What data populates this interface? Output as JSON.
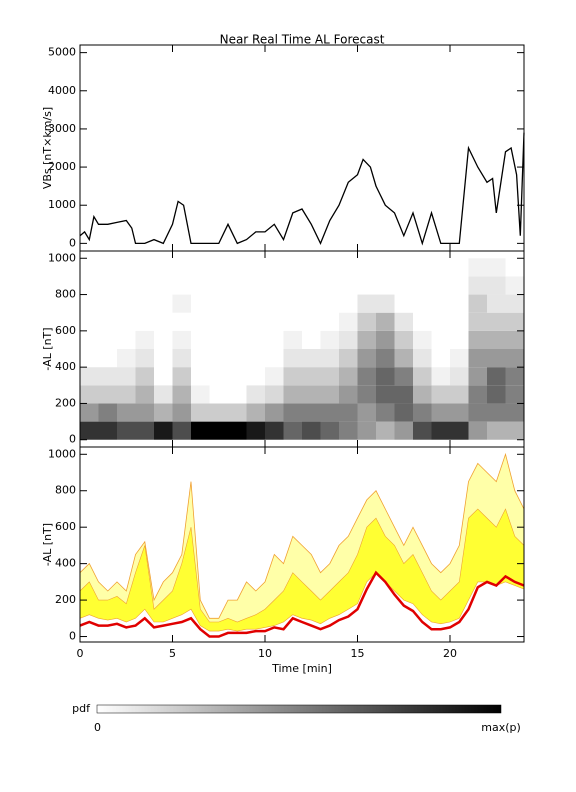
{
  "chart_data": [
    {
      "type": "line",
      "title": "Near Real Time AL Forecast",
      "ylabel": "VBs [nT×km/s]",
      "color": "#000000",
      "xlim": [
        0,
        24
      ],
      "xticks": [
        0,
        5,
        10,
        15,
        20
      ],
      "ylim": [
        -200,
        5200
      ],
      "yticks": [
        0,
        1000,
        2000,
        3000,
        4000,
        5000
      ],
      "x": [
        0,
        0.25,
        0.5,
        0.75,
        1,
        1.5,
        2,
        2.5,
        2.8,
        3,
        3.5,
        4,
        4.5,
        5,
        5.3,
        5.6,
        6,
        7,
        7.5,
        8,
        8.5,
        9,
        9.5,
        10,
        10.5,
        11,
        11.5,
        12,
        12.5,
        13,
        13.5,
        14,
        14.5,
        15,
        15.3,
        15.7,
        16,
        16.5,
        17,
        17.5,
        18,
        18.5,
        19,
        19.5,
        20,
        20.5,
        21,
        21.5,
        22,
        22.3,
        22.5,
        23,
        23.3,
        23.6,
        23.8,
        24
      ],
      "values": [
        200,
        300,
        100,
        700,
        500,
        500,
        550,
        600,
        400,
        0,
        0,
        100,
        0,
        500,
        1100,
        1000,
        0,
        0,
        0,
        500,
        0,
        100,
        300,
        300,
        500,
        100,
        800,
        900,
        500,
        0,
        600,
        1000,
        1600,
        1800,
        2200,
        2000,
        1500,
        1000,
        800,
        200,
        800,
        0,
        800,
        0,
        0,
        0,
        2500,
        2000,
        1600,
        1700,
        800,
        2400,
        2500,
        1800,
        200,
        2900
      ]
    },
    {
      "type": "heatmap",
      "ylabel": "-AL [nT]",
      "xlim": [
        0,
        24
      ],
      "xticks": [
        0,
        5,
        10,
        15,
        20
      ],
      "ylim": [
        -40,
        1040
      ],
      "yticks": [
        0,
        200,
        400,
        600,
        800,
        1000
      ],
      "x_edges": [
        0,
        1,
        2,
        3,
        4,
        5,
        6,
        7,
        8,
        9,
        10,
        11,
        12,
        13,
        14,
        15,
        16,
        17,
        18,
        19,
        20,
        21,
        22,
        23,
        24
      ],
      "y_edges": [
        0,
        100,
        200,
        300,
        400,
        500,
        600,
        700,
        800,
        900,
        1000
      ],
      "z": [
        [
          0.8,
          0.4,
          0.2,
          0.1,
          0,
          0,
          0,
          0,
          0,
          0
        ],
        [
          0.8,
          0.5,
          0.2,
          0.1,
          0,
          0,
          0,
          0,
          0,
          0
        ],
        [
          0.7,
          0.4,
          0.2,
          0.1,
          0.05,
          0,
          0,
          0,
          0,
          0
        ],
        [
          0.7,
          0.4,
          0.3,
          0.2,
          0.1,
          0.05,
          0,
          0,
          0,
          0
        ],
        [
          0.9,
          0.3,
          0.1,
          0,
          0,
          0,
          0,
          0,
          0,
          0
        ],
        [
          0.7,
          0.4,
          0.3,
          0.2,
          0.1,
          0.05,
          0,
          0.05,
          0,
          0
        ],
        [
          1,
          0.2,
          0.05,
          0,
          0,
          0,
          0,
          0,
          0,
          0
        ],
        [
          1,
          0.2,
          0,
          0,
          0,
          0,
          0,
          0,
          0,
          0
        ],
        [
          1,
          0.2,
          0,
          0,
          0,
          0,
          0,
          0,
          0,
          0
        ],
        [
          0.9,
          0.3,
          0.1,
          0,
          0,
          0,
          0,
          0,
          0,
          0
        ],
        [
          0.8,
          0.4,
          0.15,
          0.05,
          0,
          0,
          0,
          0,
          0,
          0
        ],
        [
          0.6,
          0.5,
          0.3,
          0.2,
          0.1,
          0.05,
          0,
          0,
          0,
          0
        ],
        [
          0.7,
          0.5,
          0.3,
          0.2,
          0.1,
          0,
          0,
          0,
          0,
          0
        ],
        [
          0.6,
          0.5,
          0.3,
          0.2,
          0.1,
          0.05,
          0,
          0,
          0,
          0
        ],
        [
          0.5,
          0.5,
          0.4,
          0.3,
          0.2,
          0.1,
          0.05,
          0,
          0,
          0
        ],
        [
          0.4,
          0.4,
          0.5,
          0.5,
          0.4,
          0.3,
          0.2,
          0.1,
          0,
          0
        ],
        [
          0.3,
          0.5,
          0.6,
          0.6,
          0.5,
          0.4,
          0.3,
          0.1,
          0,
          0
        ],
        [
          0.4,
          0.6,
          0.6,
          0.5,
          0.3,
          0.2,
          0.1,
          0,
          0,
          0
        ],
        [
          0.7,
          0.5,
          0.3,
          0.2,
          0.1,
          0.05,
          0,
          0,
          0,
          0
        ],
        [
          0.8,
          0.4,
          0.2,
          0.05,
          0,
          0,
          0,
          0,
          0,
          0
        ],
        [
          0.8,
          0.4,
          0.2,
          0.1,
          0.05,
          0,
          0,
          0,
          0,
          0
        ],
        [
          0.4,
          0.5,
          0.5,
          0.4,
          0.4,
          0.3,
          0.2,
          0.2,
          0.1,
          0.05
        ],
        [
          0.3,
          0.5,
          0.6,
          0.6,
          0.4,
          0.3,
          0.2,
          0.1,
          0.1,
          0.05
        ],
        [
          0.3,
          0.5,
          0.5,
          0.5,
          0.4,
          0.3,
          0.2,
          0.1,
          0.05,
          0
        ]
      ]
    },
    {
      "type": "band",
      "ylabel": "-AL [nT]",
      "xlabel": "Time [min]",
      "xlim": [
        0,
        24
      ],
      "xticks": [
        0,
        5,
        10,
        15,
        20
      ],
      "ylim": [
        -30,
        1040
      ],
      "yticks": [
        0,
        200,
        400,
        600,
        800,
        1000
      ],
      "envelope_color": "#f0a030",
      "outer_fill": "#ffffa8",
      "band_color": "#ffff33",
      "median_color": "#e00000",
      "x": [
        0,
        0.5,
        1,
        1.5,
        2,
        2.5,
        3,
        3.5,
        4,
        4.5,
        5,
        5.5,
        6,
        6.5,
        7,
        7.5,
        8,
        8.5,
        9,
        9.5,
        10,
        10.5,
        11,
        11.5,
        12,
        12.5,
        13,
        13.5,
        14,
        14.5,
        15,
        15.5,
        16,
        16.5,
        17,
        17.5,
        18,
        18.5,
        19,
        19.5,
        20,
        20.5,
        21,
        21.5,
        22,
        22.5,
        23,
        23.5,
        24
      ],
      "upper": [
        350,
        400,
        300,
        250,
        300,
        250,
        450,
        520,
        200,
        300,
        350,
        450,
        850,
        200,
        100,
        100,
        200,
        200,
        300,
        250,
        300,
        450,
        400,
        550,
        500,
        450,
        350,
        400,
        500,
        550,
        650,
        750,
        800,
        700,
        600,
        500,
        600,
        500,
        400,
        350,
        400,
        500,
        850,
        950,
        900,
        850,
        1000,
        800,
        700
      ],
      "band_high": [
        250,
        300,
        200,
        200,
        220,
        180,
        350,
        500,
        150,
        200,
        250,
        400,
        600,
        150,
        80,
        80,
        100,
        80,
        100,
        120,
        150,
        200,
        250,
        350,
        300,
        250,
        200,
        250,
        300,
        350,
        450,
        600,
        650,
        550,
        500,
        400,
        450,
        350,
        250,
        200,
        250,
        300,
        650,
        700,
        650,
        600,
        700,
        550,
        500
      ],
      "band_low": [
        100,
        120,
        100,
        90,
        100,
        80,
        100,
        150,
        80,
        80,
        100,
        120,
        150,
        60,
        30,
        30,
        40,
        30,
        40,
        40,
        50,
        60,
        80,
        120,
        100,
        90,
        70,
        100,
        120,
        150,
        180,
        300,
        350,
        300,
        250,
        200,
        180,
        120,
        80,
        70,
        80,
        100,
        200,
        300,
        300,
        280,
        300,
        280,
        260
      ],
      "median": [
        60,
        80,
        60,
        60,
        70,
        50,
        60,
        100,
        50,
        60,
        70,
        80,
        100,
        40,
        0,
        0,
        20,
        20,
        20,
        30,
        30,
        50,
        40,
        100,
        80,
        60,
        40,
        60,
        90,
        110,
        150,
        260,
        350,
        300,
        230,
        170,
        140,
        80,
        40,
        40,
        50,
        80,
        150,
        270,
        300,
        280,
        330,
        300,
        280
      ]
    }
  ],
  "colorbar": {
    "label": "pdf",
    "min_label": "0",
    "max_label": "max(p)"
  }
}
